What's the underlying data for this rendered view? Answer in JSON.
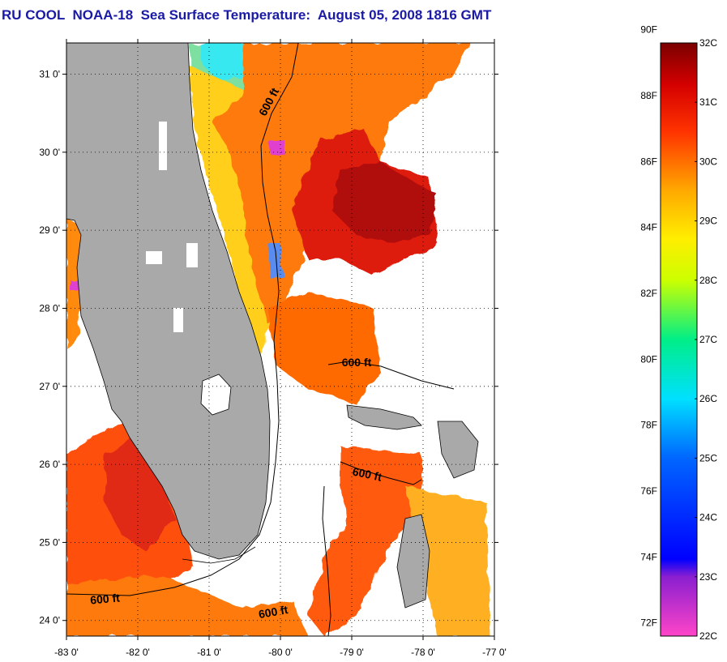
{
  "title": "RU COOL  NOAA-18  Sea Surface Temperature:  August 05, 2008 1816 GMT",
  "map": {
    "lat_labels": [
      "31 0'",
      "30 0'",
      "29 0'",
      "28 0'",
      "27 0'",
      "26 0'",
      "25 0'",
      "24 0'"
    ],
    "lon_labels": [
      "-83 0'",
      "-82 0'",
      "-81 0'",
      "-80 0'",
      "-79 0'",
      "-78 0'",
      "-77 0'"
    ],
    "lat_range": [
      23.8,
      31.4
    ],
    "lon_range": [
      -83.0,
      -77.0
    ],
    "isobath_labels": [
      "600 ft",
      "600 ft",
      "600 ft",
      "600 ft",
      "600 ft"
    ],
    "land_color": "#a9a9a9",
    "no_data_color": "#ffffff",
    "grid": "dotted"
  },
  "colorbar": {
    "fahrenheit_labels": [
      "90F",
      "88F",
      "86F",
      "84F",
      "82F",
      "80F",
      "78F",
      "76F",
      "74F",
      "72F"
    ],
    "celsius_labels": [
      "32C",
      "31C",
      "30C",
      "29C",
      "28C",
      "27C",
      "26C",
      "25C",
      "24C",
      "23C",
      "22C"
    ],
    "range_celsius": [
      22,
      32
    ],
    "colors": [
      "#ff44c8",
      "#8a1fd0",
      "#0000ff",
      "#00c8ff",
      "#00ee88",
      "#ffff00",
      "#ffaa00",
      "#ff3300",
      "#cc0000",
      "#7a0000"
    ]
  }
}
